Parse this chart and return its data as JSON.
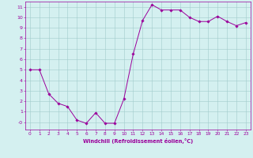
{
  "x": [
    0,
    1,
    2,
    3,
    4,
    5,
    6,
    7,
    8,
    9,
    10,
    11,
    12,
    13,
    14,
    15,
    16,
    17,
    18,
    19,
    20,
    21,
    22,
    23
  ],
  "y": [
    5,
    5,
    2.7,
    1.8,
    1.5,
    0.2,
    -0.1,
    0.9,
    -0.1,
    -0.1,
    2.2,
    6.5,
    9.7,
    11.2,
    10.7,
    10.7,
    10.7,
    10.0,
    9.6,
    9.6,
    10.1,
    9.6,
    9.2,
    9.5
  ],
  "line_color": "#9b009b",
  "marker": "D",
  "marker_size": 1.8,
  "bg_color": "#d4f0f0",
  "grid_color": "#a0cccc",
  "xlabel": "Windchill (Refroidissement éolien,°C)",
  "xlabel_color": "#9b009b",
  "tick_color": "#9b009b",
  "xlim": [
    -0.5,
    23.5
  ],
  "ylim": [
    -0.7,
    11.5
  ],
  "yticks": [
    0,
    1,
    2,
    3,
    4,
    5,
    6,
    7,
    8,
    9,
    10,
    11
  ],
  "xticks": [
    0,
    1,
    2,
    3,
    4,
    5,
    6,
    7,
    8,
    9,
    10,
    11,
    12,
    13,
    14,
    15,
    16,
    17,
    18,
    19,
    20,
    21,
    22,
    23
  ],
  "ytick_labels": [
    "-0",
    "1",
    "2",
    "3",
    "4",
    "5",
    "6",
    "7",
    "8",
    "9",
    "10",
    "11"
  ],
  "figsize": [
    3.2,
    2.0
  ],
  "dpi": 100
}
